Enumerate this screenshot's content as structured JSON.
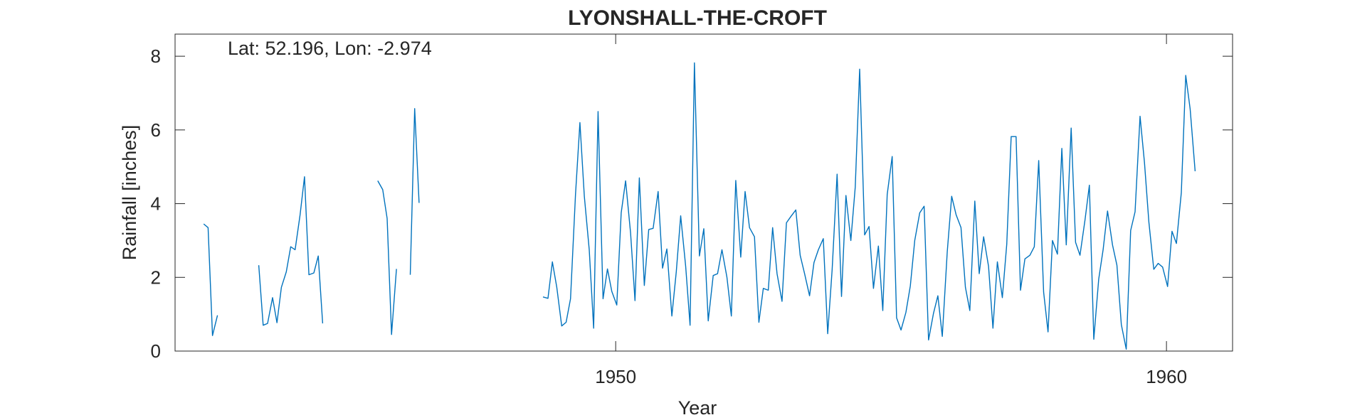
{
  "chart_data": {
    "type": "line",
    "title": "LYONSHALL-THE-CROFT",
    "xlabel": "Year",
    "ylabel": "Rainfall [inches]",
    "annotation": "Lat: 52.196, Lon: -2.974",
    "xlim": [
      1942.0,
      1961.2
    ],
    "ylim": [
      0,
      8.6
    ],
    "xticks": [
      1950,
      1960
    ],
    "xtick_labels": [
      "1950",
      "1960"
    ],
    "yticks": [
      0,
      2,
      4,
      6,
      8
    ],
    "ytick_labels": [
      "0",
      "2",
      "4",
      "6",
      "8"
    ],
    "grid": false,
    "line_color": "#0072BD",
    "series": [
      {
        "segments": [
          [
            [
              1942.52,
              3.45
            ],
            [
              1942.6,
              3.35
            ],
            [
              1942.68,
              0.42
            ],
            [
              1942.77,
              0.97
            ]
          ],
          [
            [
              1943.52,
              2.33
            ],
            [
              1943.6,
              0.7
            ],
            [
              1943.68,
              0.75
            ],
            [
              1943.77,
              1.45
            ],
            [
              1943.85,
              0.77
            ],
            [
              1943.93,
              1.73
            ],
            [
              1944.02,
              2.15
            ],
            [
              1944.1,
              2.83
            ],
            [
              1944.18,
              2.75
            ],
            [
              1944.27,
              3.7
            ],
            [
              1944.35,
              4.73
            ],
            [
              1944.43,
              2.07
            ],
            [
              1944.52,
              2.12
            ],
            [
              1944.6,
              2.58
            ],
            [
              1944.68,
              0.75
            ]
          ],
          [
            [
              1945.68,
              4.62
            ],
            [
              1945.77,
              4.38
            ],
            [
              1945.85,
              3.6
            ],
            [
              1945.93,
              0.45
            ],
            [
              1946.02,
              2.23
            ]
          ],
          [
            [
              1946.27,
              2.07
            ],
            [
              1946.35,
              6.58
            ],
            [
              1946.43,
              4.02
            ]
          ],
          [
            [
              1948.68,
              1.47
            ],
            [
              1948.77,
              1.43
            ],
            [
              1948.85,
              2.42
            ],
            [
              1948.93,
              1.73
            ],
            [
              1949.02,
              0.68
            ],
            [
              1949.1,
              0.78
            ],
            [
              1949.18,
              1.42
            ],
            [
              1949.27,
              4.25
            ],
            [
              1949.35,
              6.2
            ],
            [
              1949.43,
              4.2
            ],
            [
              1949.52,
              2.75
            ],
            [
              1949.6,
              0.62
            ],
            [
              1949.68,
              6.5
            ],
            [
              1949.77,
              1.42
            ],
            [
              1949.85,
              2.23
            ],
            [
              1949.93,
              1.62
            ],
            [
              1950.02,
              1.25
            ],
            [
              1950.1,
              3.75
            ],
            [
              1950.18,
              4.62
            ],
            [
              1950.27,
              3.2
            ],
            [
              1950.35,
              1.37
            ],
            [
              1950.43,
              4.7
            ],
            [
              1950.52,
              1.78
            ],
            [
              1950.6,
              3.3
            ],
            [
              1950.68,
              3.33
            ],
            [
              1950.77,
              4.33
            ],
            [
              1950.85,
              2.25
            ],
            [
              1950.93,
              2.77
            ],
            [
              1951.02,
              0.95
            ],
            [
              1951.1,
              2.15
            ],
            [
              1951.18,
              3.67
            ],
            [
              1951.27,
              2.3
            ],
            [
              1951.35,
              0.7
            ],
            [
              1951.43,
              7.82
            ],
            [
              1951.52,
              2.58
            ],
            [
              1951.6,
              3.32
            ],
            [
              1951.68,
              0.82
            ],
            [
              1951.77,
              2.05
            ],
            [
              1951.85,
              2.1
            ],
            [
              1951.93,
              2.75
            ],
            [
              1952.02,
              2.0
            ],
            [
              1952.1,
              0.95
            ],
            [
              1952.18,
              4.63
            ],
            [
              1952.27,
              2.55
            ],
            [
              1952.35,
              4.33
            ],
            [
              1952.43,
              3.35
            ],
            [
              1952.52,
              3.1
            ],
            [
              1952.6,
              0.78
            ],
            [
              1952.68,
              1.7
            ],
            [
              1952.77,
              1.65
            ],
            [
              1952.85,
              3.35
            ],
            [
              1952.93,
              2.1
            ],
            [
              1953.02,
              1.35
            ],
            [
              1953.1,
              3.48
            ],
            [
              1953.18,
              3.65
            ],
            [
              1953.27,
              3.83
            ],
            [
              1953.35,
              2.6
            ],
            [
              1953.43,
              2.1
            ],
            [
              1953.52,
              1.5
            ],
            [
              1953.6,
              2.4
            ],
            [
              1953.68,
              2.75
            ],
            [
              1953.77,
              3.05
            ],
            [
              1953.85,
              0.47
            ],
            [
              1953.93,
              2.2
            ],
            [
              1954.02,
              4.8
            ],
            [
              1954.1,
              1.48
            ],
            [
              1954.18,
              4.22
            ],
            [
              1954.27,
              3.0
            ],
            [
              1954.35,
              4.45
            ],
            [
              1954.43,
              7.65
            ],
            [
              1954.52,
              3.15
            ],
            [
              1954.6,
              3.38
            ],
            [
              1954.68,
              1.7
            ],
            [
              1954.77,
              2.85
            ],
            [
              1954.85,
              1.1
            ],
            [
              1954.93,
              4.25
            ],
            [
              1955.02,
              5.28
            ],
            [
              1955.1,
              0.9
            ],
            [
              1955.18,
              0.57
            ],
            [
              1955.27,
              1.05
            ],
            [
              1955.35,
              1.77
            ],
            [
              1955.43,
              3.0
            ],
            [
              1955.52,
              3.75
            ],
            [
              1955.6,
              3.93
            ],
            [
              1955.68,
              0.3
            ],
            [
              1955.77,
              1.02
            ],
            [
              1955.85,
              1.5
            ],
            [
              1955.93,
              0.4
            ],
            [
              1956.02,
              2.7
            ],
            [
              1956.1,
              4.2
            ],
            [
              1956.18,
              3.7
            ],
            [
              1956.27,
              3.35
            ],
            [
              1956.35,
              1.73
            ],
            [
              1956.43,
              1.1
            ],
            [
              1956.52,
              4.07
            ],
            [
              1956.6,
              2.1
            ],
            [
              1956.68,
              3.1
            ],
            [
              1956.77,
              2.3
            ],
            [
              1956.85,
              0.62
            ],
            [
              1956.93,
              2.42
            ],
            [
              1957.02,
              1.45
            ],
            [
              1957.1,
              2.9
            ],
            [
              1957.18,
              5.82
            ],
            [
              1957.27,
              5.82
            ],
            [
              1957.35,
              1.65
            ],
            [
              1957.43,
              2.5
            ],
            [
              1957.52,
              2.6
            ],
            [
              1957.6,
              2.83
            ],
            [
              1957.68,
              5.17
            ],
            [
              1957.77,
              1.6
            ],
            [
              1957.85,
              0.52
            ],
            [
              1957.93,
              3.0
            ],
            [
              1958.02,
              2.63
            ],
            [
              1958.1,
              5.5
            ],
            [
              1958.18,
              2.88
            ],
            [
              1958.27,
              6.05
            ],
            [
              1958.35,
              2.95
            ],
            [
              1958.43,
              2.6
            ],
            [
              1958.52,
              3.55
            ],
            [
              1958.6,
              4.5
            ],
            [
              1958.68,
              0.32
            ],
            [
              1958.77,
              1.95
            ],
            [
              1958.85,
              2.75
            ],
            [
              1958.93,
              3.8
            ],
            [
              1959.02,
              2.88
            ],
            [
              1959.1,
              2.33
            ],
            [
              1959.18,
              0.72
            ],
            [
              1959.27,
              0.05
            ],
            [
              1959.35,
              3.27
            ],
            [
              1959.43,
              3.78
            ],
            [
              1959.52,
              6.37
            ],
            [
              1959.6,
              5.12
            ],
            [
              1959.68,
              3.5
            ],
            [
              1959.77,
              2.22
            ],
            [
              1959.85,
              2.38
            ],
            [
              1959.93,
              2.28
            ],
            [
              1960.02,
              1.75
            ],
            [
              1960.1,
              3.25
            ],
            [
              1960.18,
              2.92
            ],
            [
              1960.27,
              4.3
            ],
            [
              1960.35,
              7.48
            ],
            [
              1960.43,
              6.57
            ],
            [
              1960.52,
              4.88
            ]
          ]
        ]
      }
    ]
  }
}
